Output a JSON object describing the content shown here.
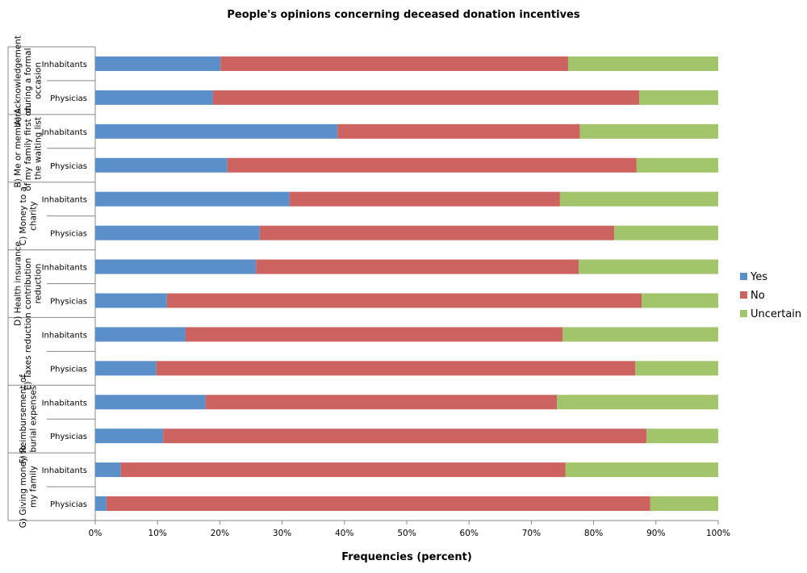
{
  "chart_data": {
    "type": "bar",
    "orientation": "horizontal",
    "stacked": "percent",
    "title": "People's opinions concerning deceased donation incentives",
    "xlabel": "Frequencies (percent)",
    "ylabel": "",
    "xlim": [
      0,
      100
    ],
    "xticks": [
      "0%",
      "10%",
      "20%",
      "30%",
      "40%",
      "50%",
      "60%",
      "70%",
      "80%",
      "90%",
      "100%"
    ],
    "grid": false,
    "legend_position": "right",
    "groups": [
      {
        "label": "A) Acknowledgement during a formal occasion",
        "lines": [
          "A) Acknowledgement",
          "during a formal",
          "occasion"
        ]
      },
      {
        "label": "B) Me or members of my family first on the waiting list",
        "lines": [
          "B) Me or members",
          "of my family first on",
          "the waiting list"
        ]
      },
      {
        "label": "C) Money to a charity",
        "lines": [
          "C) Money to a",
          "charity"
        ]
      },
      {
        "label": "D) Health insurance contribution reduction",
        "lines": [
          "D) Health insurance",
          "contribution",
          "reduction"
        ]
      },
      {
        "label": "E) Taxes reduction",
        "lines": [
          "E) Taxes reduction"
        ]
      },
      {
        "label": "F) Reimbursement of burial expenses",
        "lines": [
          "F) Reimbursement of",
          "burial expenses"
        ]
      },
      {
        "label": "G) Giving money to my family",
        "lines": [
          "G) Giving money to",
          "my family"
        ]
      }
    ],
    "subcategories": [
      "Inhabitants",
      "Physicias"
    ],
    "series": [
      {
        "name": "Yes",
        "color": "#5b8fc9",
        "values": [
          20.1,
          18.9,
          38.9,
          21.2,
          31.2,
          26.4,
          25.8,
          11.5,
          14.5,
          9.8,
          17.7,
          10.9,
          4.1,
          1.8
        ]
      },
      {
        "name": "No",
        "color": "#cd6360",
        "values": [
          55.8,
          68.4,
          38.9,
          65.7,
          43.4,
          56.9,
          51.8,
          76.2,
          60.5,
          76.9,
          56.4,
          77.6,
          71.4,
          87.3
        ]
      },
      {
        "name": "Uncertain",
        "color": "#a2c46a",
        "values": [
          24.1,
          12.7,
          22.2,
          13.1,
          25.4,
          16.7,
          22.4,
          12.3,
          25.0,
          13.3,
          25.9,
          11.5,
          24.5,
          10.9
        ]
      }
    ]
  }
}
